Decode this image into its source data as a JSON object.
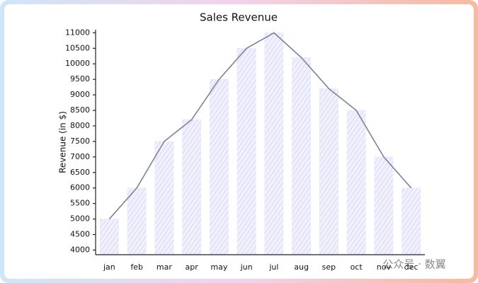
{
  "chart_data": {
    "type": "bar",
    "title": "Sales Revenue",
    "ylabel": "Revenue (in $)",
    "categories": [
      "jan",
      "feb",
      "mar",
      "apr",
      "may",
      "jun",
      "jul",
      "aug",
      "sep",
      "oct",
      "nov",
      "dec"
    ],
    "series": [
      {
        "type": "bar",
        "color": "#e6e6fa",
        "values": [
          5000,
          6000,
          7500,
          8200,
          9500,
          10500,
          11000,
          10200,
          9200,
          8500,
          7000,
          6000
        ]
      },
      {
        "type": "line",
        "color": "#7a8499",
        "values": [
          5000,
          6000,
          7500,
          8200,
          9500,
          10500,
          11000,
          10200,
          9200,
          8500,
          7000,
          6000
        ]
      }
    ],
    "ylim": [
      3850,
      11100
    ],
    "yticks": [
      4000,
      4500,
      5000,
      5500,
      6000,
      6500,
      7000,
      7500,
      8000,
      8500,
      9000,
      9500,
      10000,
      10500,
      11000
    ],
    "grid": false,
    "watermark": "公众号 · 数翼"
  }
}
